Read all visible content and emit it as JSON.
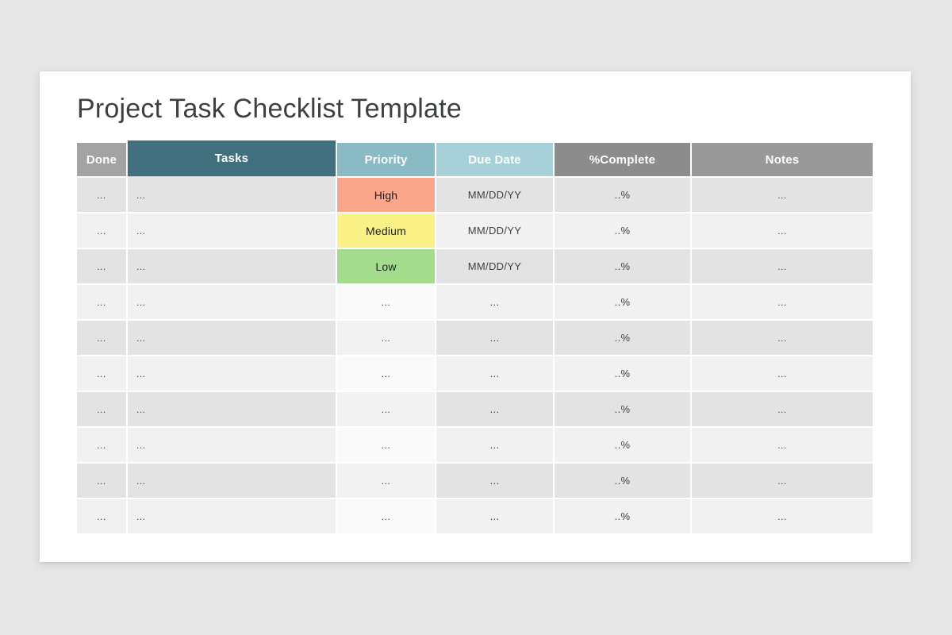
{
  "page": {
    "title": "Project Task Checklist Template"
  },
  "colors": {
    "page_background": "#e8e7e8",
    "card_background": "#ffffff",
    "title_text": "#3c4043",
    "header_text": "#ffffff",
    "cell_text": "#3f3f3f",
    "priority_tag_text": "#1e1e1e",
    "row_dark": "#e3e3e3",
    "row_light": "#f1f1f1",
    "priority_cell_on_dark": "#f2f2f2",
    "priority_cell_on_light": "#fafafa",
    "priority_high": "#f9a68c",
    "priority_medium": "#fbf287",
    "priority_low": "#a4dc8d"
  },
  "table": {
    "columns": [
      {
        "id": "done",
        "label": "Done",
        "header_bg": "#a3a3a3"
      },
      {
        "id": "tasks",
        "label": "Tasks",
        "header_bg": "#416f7e"
      },
      {
        "id": "priority",
        "label": "Priority",
        "header_bg": "#8abbc4"
      },
      {
        "id": "due_date",
        "label": "Due Date",
        "header_bg": "#a8d0d8"
      },
      {
        "id": "complete",
        "label": "%Complete",
        "header_bg": "#8c8c8c"
      },
      {
        "id": "notes",
        "label": "Notes",
        "header_bg": "#999999"
      }
    ],
    "rows": [
      {
        "done": "...",
        "tasks": "...",
        "priority": "High",
        "priority_level": "high",
        "due_date": "MM/DD/YY",
        "complete": "..%",
        "notes": "..."
      },
      {
        "done": "...",
        "tasks": "...",
        "priority": "Medium",
        "priority_level": "medium",
        "due_date": "MM/DD/YY",
        "complete": "..%",
        "notes": "..."
      },
      {
        "done": "...",
        "tasks": "...",
        "priority": "Low",
        "priority_level": "low",
        "due_date": "MM/DD/YY",
        "complete": "..%",
        "notes": "..."
      },
      {
        "done": "...",
        "tasks": "...",
        "priority": "...",
        "due_date": "...",
        "complete": "..%",
        "notes": "..."
      },
      {
        "done": "...",
        "tasks": "...",
        "priority": "...",
        "due_date": "...",
        "complete": "..%",
        "notes": "..."
      },
      {
        "done": "...",
        "tasks": "...",
        "priority": "...",
        "due_date": "...",
        "complete": "..%",
        "notes": "..."
      },
      {
        "done": "...",
        "tasks": "...",
        "priority": "...",
        "due_date": "...",
        "complete": "..%",
        "notes": "..."
      },
      {
        "done": "...",
        "tasks": "...",
        "priority": "...",
        "due_date": "...",
        "complete": "..%",
        "notes": "..."
      },
      {
        "done": "...",
        "tasks": "...",
        "priority": "...",
        "due_date": "...",
        "complete": "..%",
        "notes": "..."
      },
      {
        "done": "...",
        "tasks": "...",
        "priority": "...",
        "due_date": "...",
        "complete": "..%",
        "notes": "..."
      }
    ]
  }
}
